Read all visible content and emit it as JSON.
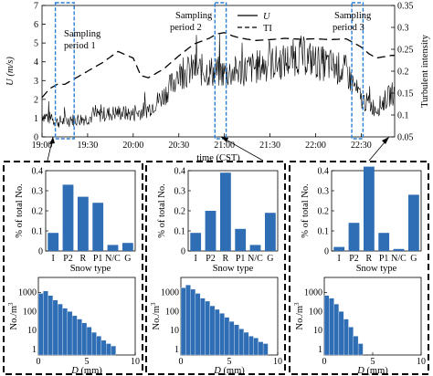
{
  "chart_data": [
    {
      "type": "line",
      "xlabel": "time (CST)",
      "ylabel": "U (m/s)",
      "y2label": "Turbulent intensity",
      "x_ticks": [
        "19:00",
        "19:30",
        "20:00",
        "20:30",
        "21:00",
        "21:30",
        "22:00",
        "22:30"
      ],
      "ylim": [
        0,
        7
      ],
      "y_ticks": [
        "0",
        "1",
        "2",
        "3",
        "4",
        "5",
        "6",
        "7"
      ],
      "y2lim": [
        0.05,
        0.35
      ],
      "y2_ticks": [
        "0.05",
        "0.1",
        "0.15",
        "0.2",
        "0.25",
        "0.3",
        "0.35"
      ],
      "legend_position": "top-center",
      "series": [
        {
          "name": "U",
          "axis": "left",
          "style": "solid",
          "x_minutes": [
            0,
            10,
            20,
            30,
            40,
            50,
            60,
            70,
            80,
            90,
            100,
            110,
            120,
            130,
            140,
            150,
            160,
            170,
            180,
            190,
            200,
            210,
            220,
            230
          ],
          "values": [
            1.2,
            0.8,
            0.9,
            1.0,
            1.2,
            1.3,
            1.2,
            1.5,
            2.2,
            3.3,
            3.6,
            3.5,
            3.4,
            3.5,
            3.7,
            3.9,
            4.0,
            4.4,
            4.0,
            3.8,
            3.5,
            2.0,
            1.5,
            2.3
          ]
        },
        {
          "name": "TI",
          "axis": "right",
          "style": "dashed",
          "x_minutes": [
            0,
            5,
            10,
            15,
            20,
            30,
            40,
            50,
            60,
            65,
            70,
            80,
            90,
            100,
            110,
            115,
            120,
            125,
            130,
            140,
            150,
            160,
            170,
            180,
            190,
            200,
            205,
            210,
            215,
            220,
            230
          ],
          "values": [
            0.14,
            0.16,
            0.17,
            0.17,
            0.18,
            0.2,
            0.22,
            0.245,
            0.23,
            0.19,
            0.185,
            0.205,
            0.235,
            0.262,
            0.275,
            0.285,
            0.288,
            0.281,
            0.276,
            0.27,
            0.272,
            0.275,
            0.273,
            0.274,
            0.272,
            0.274,
            0.265,
            0.255,
            0.24,
            0.23,
            0.236
          ]
        }
      ],
      "annotations": [
        {
          "text": "Sampling period 1",
          "x_start": "19:10",
          "x_end": "19:20"
        },
        {
          "text": "Sampling period 2",
          "x_start": "20:55",
          "x_end": "21:00"
        },
        {
          "text": "Sampling period 3",
          "x_start": "22:25",
          "x_end": "22:30"
        }
      ]
    },
    {
      "type": "bar",
      "panel": "period-1-type",
      "categories": [
        "I",
        "P2",
        "R",
        "P1",
        "N/C",
        "G"
      ],
      "values": [
        0.09,
        0.33,
        0.27,
        0.24,
        0.03,
        0.04
      ],
      "xlabel": "Snow type",
      "ylabel": "% of total No.",
      "ylim": [
        0,
        0.4
      ],
      "y_ticks": [
        "0",
        "0.1",
        "0.2",
        "0.3",
        "0.4"
      ]
    },
    {
      "type": "bar",
      "panel": "period-2-type",
      "categories": [
        "I",
        "P2",
        "R",
        "P1",
        "N/C",
        "G"
      ],
      "values": [
        0.09,
        0.2,
        0.39,
        0.11,
        0.03,
        0.19
      ],
      "xlabel": "Snow type",
      "ylabel": "% of total No.",
      "ylim": [
        0,
        0.4
      ],
      "y_ticks": [
        "0",
        "0.1",
        "0.2",
        "0.3",
        "0.4"
      ]
    },
    {
      "type": "bar",
      "panel": "period-3-type",
      "categories": [
        "I",
        "P2",
        "R",
        "P1",
        "N/C",
        "G"
      ],
      "values": [
        0.02,
        0.14,
        0.42,
        0.09,
        0.01,
        0.28
      ],
      "xlabel": "Snow type",
      "ylabel": "% of total No.",
      "ylim": [
        0,
        0.4
      ],
      "y_ticks": [
        "0",
        "0.1",
        "0.2",
        "0.3",
        "0.4"
      ]
    },
    {
      "type": "bar",
      "panel": "period-1-size",
      "xlabel": "D (mm)",
      "ylabel": "No./m3",
      "scale": "log",
      "xlim": [
        0,
        10
      ],
      "x_ticks": [
        "0",
        "5",
        "10"
      ],
      "y_ticks": [
        "1",
        "10",
        "100",
        "1000"
      ],
      "bin_width": 0.5,
      "values": [
        900,
        1200,
        700,
        400,
        250,
        150,
        100,
        60,
        40,
        25,
        15,
        8,
        5,
        3,
        2,
        1.5
      ]
    },
    {
      "type": "bar",
      "panel": "period-2-size",
      "xlabel": "D (mm)",
      "ylabel": "No./m3",
      "scale": "log",
      "xlim": [
        0,
        10
      ],
      "x_ticks": [
        "0",
        "5",
        "10"
      ],
      "y_ticks": [
        "1",
        "10",
        "100",
        "1000"
      ],
      "bin_width": 0.5,
      "values": [
        1800,
        2500,
        1500,
        900,
        500,
        350,
        200,
        130,
        80,
        50,
        30,
        20,
        12,
        8,
        5,
        4,
        2.5,
        2
      ]
    },
    {
      "type": "bar",
      "panel": "period-3-size",
      "xlabel": "D (mm)",
      "ylabel": "No./m3",
      "scale": "log",
      "xlim": [
        0,
        10
      ],
      "x_ticks": [
        "0",
        "5",
        "10"
      ],
      "y_ticks": [
        "1",
        "10",
        "100",
        "1000"
      ],
      "bin_width": 0.5,
      "values": [
        700,
        500,
        250,
        100,
        40,
        15,
        5,
        2
      ]
    }
  ],
  "colors": {
    "bar": "#2f6eb5",
    "period_box": "#2a7fd4"
  }
}
